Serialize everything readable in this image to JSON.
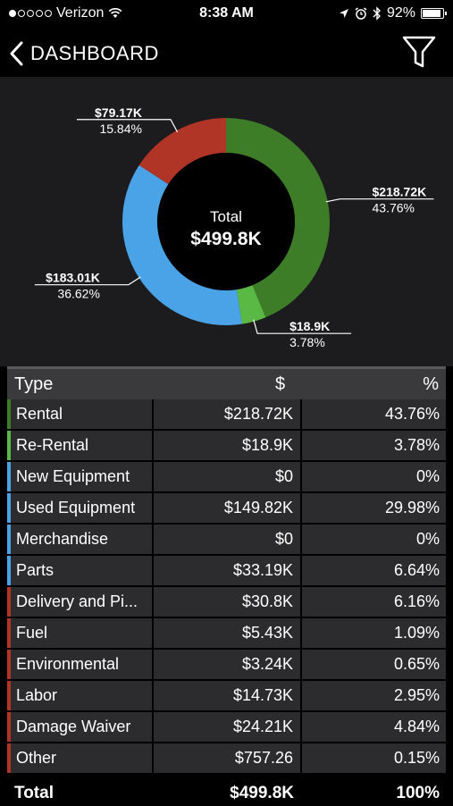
{
  "status_bar": {
    "carrier": "Verizon",
    "time": "8:38 AM",
    "battery": "92%",
    "battery_level": 0.92,
    "signal_bars": 1,
    "icons": [
      "wifi-icon",
      "location-arrow-icon",
      "alarm-icon",
      "bluetooth-icon",
      "battery-icon"
    ]
  },
  "nav": {
    "title": "DASHBOARD",
    "icons": [
      "chevron-left-icon",
      "filter-icon"
    ]
  },
  "chart_data": {
    "type": "pie",
    "center_label": "Total",
    "center_value": "$499.8K",
    "slices": [
      {
        "label": "$218.72K",
        "percent_label": "43.76%",
        "value": 43.76,
        "color": "#3d7d28"
      },
      {
        "label": "$18.9K",
        "percent_label": "3.78%",
        "value": 3.78,
        "color": "#5ab944"
      },
      {
        "label": "$183.01K",
        "percent_label": "36.62%",
        "value": 36.62,
        "color": "#4aa3e6"
      },
      {
        "label": "$79.17K",
        "percent_label": "15.84%",
        "value": 15.84,
        "color": "#b03526"
      }
    ]
  },
  "table": {
    "headers": {
      "type": "Type",
      "amount": "$",
      "percent": "%"
    },
    "rows": [
      {
        "type": "Rental",
        "amount": "$218.72K",
        "percent": "43.76%",
        "color": "#3d7d28"
      },
      {
        "type": "Re-Rental",
        "amount": "$18.9K",
        "percent": "3.78%",
        "color": "#5ab944"
      },
      {
        "type": "New Equipment",
        "amount": "$0",
        "percent": "0%",
        "color": "#4aa3e6"
      },
      {
        "type": "Used Equipment",
        "amount": "$149.82K",
        "percent": "29.98%",
        "color": "#4aa3e6"
      },
      {
        "type": "Merchandise",
        "amount": "$0",
        "percent": "0%",
        "color": "#4aa3e6"
      },
      {
        "type": "Parts",
        "amount": "$33.19K",
        "percent": "6.64%",
        "color": "#4aa3e6"
      },
      {
        "type": "Delivery and Pi...",
        "amount": "$30.8K",
        "percent": "6.16%",
        "color": "#b03526"
      },
      {
        "type": "Fuel",
        "amount": "$5.43K",
        "percent": "1.09%",
        "color": "#b03526"
      },
      {
        "type": "Environmental",
        "amount": "$3.24K",
        "percent": "0.65%",
        "color": "#b03526"
      },
      {
        "type": "Labor",
        "amount": "$14.73K",
        "percent": "2.95%",
        "color": "#b03526"
      },
      {
        "type": "Damage Waiver",
        "amount": "$24.21K",
        "percent": "4.84%",
        "color": "#b03526"
      },
      {
        "type": "Other",
        "amount": "$757.26",
        "percent": "0.15%",
        "color": "#b03526"
      }
    ],
    "total": {
      "label": "Total",
      "amount": "$499.8K",
      "percent": "100%"
    }
  }
}
